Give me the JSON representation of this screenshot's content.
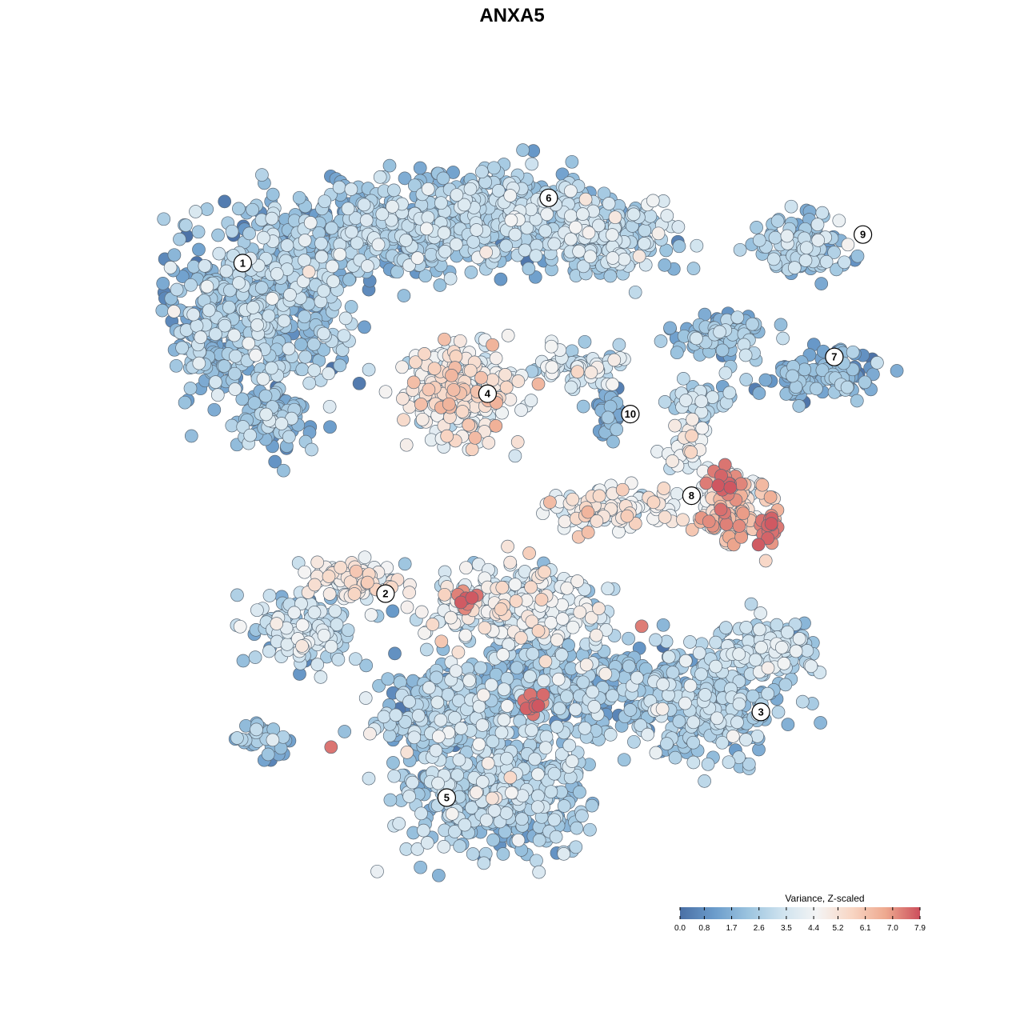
{
  "chart_data": {
    "type": "scatter",
    "title": "ANXA5",
    "xlabel": "",
    "ylabel": "",
    "grid": false,
    "legend": {
      "title": "Variance, Z-scaled",
      "placement": "bottom-right",
      "ticks": [
        "0.0",
        "0.8",
        "1.7",
        "2.6",
        "3.5",
        "4.4",
        "5.2",
        "6.1",
        "7.0",
        "7.9"
      ],
      "range": [
        0.0,
        7.9
      ],
      "colors": [
        "#4a6fa5",
        "#6b9ccb",
        "#9cc4df",
        "#cfe3ef",
        "#f4f4f4",
        "#f8d6c4",
        "#eea98f",
        "#cc4f5c"
      ]
    },
    "clusters": [
      {
        "label": "1",
        "x": -0.66,
        "y": 0.61
      },
      {
        "label": "2",
        "x": -0.31,
        "y": -0.2
      },
      {
        "label": "3",
        "x": 0.61,
        "y": -0.49
      },
      {
        "label": "4",
        "x": -0.06,
        "y": 0.29
      },
      {
        "label": "5",
        "x": -0.16,
        "y": -0.7
      },
      {
        "label": "6",
        "x": 0.09,
        "y": 0.77
      },
      {
        "label": "7",
        "x": 0.79,
        "y": 0.38
      },
      {
        "label": "8",
        "x": 0.44,
        "y": 0.04
      },
      {
        "label": "9",
        "x": 0.86,
        "y": 0.68
      },
      {
        "label": "10",
        "x": 0.29,
        "y": 0.24
      }
    ]
  }
}
